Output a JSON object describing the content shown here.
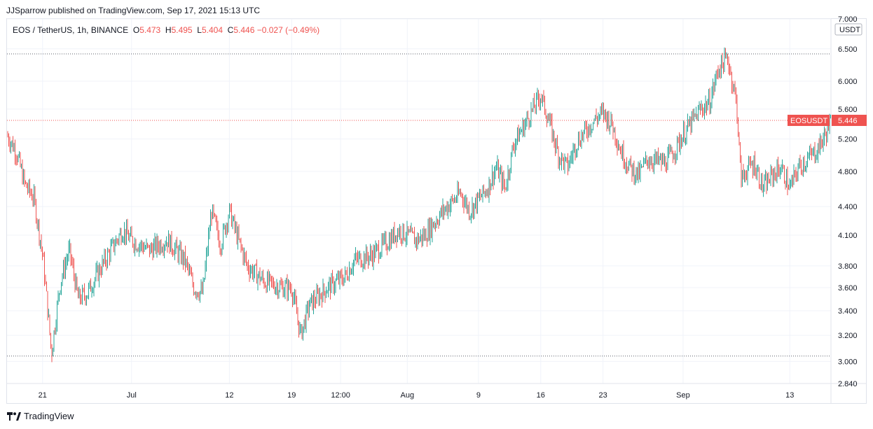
{
  "header": {
    "published": "JJSparrow published on TradingView.com, Sep 17, 2021 15:13 UTC"
  },
  "legend": {
    "symbol": "EOS / TetherUS, 1h, BINANCE",
    "o_label": "O",
    "o": "5.473",
    "h_label": "H",
    "h": "5.495",
    "l_label": "L",
    "l": "5.404",
    "c_label": "C",
    "c": "5.446",
    "change": "−0.027 (−0.49%)"
  },
  "footer": {
    "brand": "TradingView"
  },
  "colors": {
    "up": "#26a69a",
    "down": "#ef5350",
    "grid": "#f0f3fa",
    "level": "#5d606b",
    "price_line": "#ef5350"
  },
  "chart_data": {
    "type": "candlestick",
    "symbol": "EOSUSDT",
    "currency_label": "USDT",
    "last_price": 5.446,
    "y_axis": {
      "scale": "log",
      "range": [
        2.84,
        7.0
      ],
      "ticks": [
        "7.000",
        "6.500",
        "6.000",
        "5.600",
        "5.200",
        "4.800",
        "4.400",
        "4.100",
        "3.800",
        "3.600",
        "3.400",
        "3.200",
        "3.000",
        "2.840"
      ]
    },
    "x_axis": {
      "range": [
        "2021-06-17",
        "2021-09-17 15:00"
      ],
      "ticks": [
        {
          "date": "2021-06-21",
          "label": "21"
        },
        {
          "date": "2021-07-01",
          "label": "Jul"
        },
        {
          "date": "2021-07-12",
          "label": "12"
        },
        {
          "date": "2021-07-19",
          "label": "19"
        },
        {
          "date": "2021-07-24 12:00",
          "label": "12:00"
        },
        {
          "date": "2021-08-01",
          "label": "Aug"
        },
        {
          "date": "2021-08-09",
          "label": "9"
        },
        {
          "date": "2021-08-16",
          "label": "16"
        },
        {
          "date": "2021-08-23",
          "label": "23"
        },
        {
          "date": "2021-09-01",
          "label": "Sep"
        },
        {
          "date": "2021-09-13",
          "label": "13"
        }
      ]
    },
    "horizontal_levels": [
      6.42,
      3.04
    ],
    "price_path": [
      [
        "2021-06-17",
        5.25
      ],
      [
        "2021-06-18",
        5.05
      ],
      [
        "2021-06-19",
        4.65
      ],
      [
        "2021-06-20",
        4.5
      ],
      [
        "2021-06-21",
        3.9
      ],
      [
        "2021-06-22",
        3.05
      ],
      [
        "2021-06-23",
        3.65
      ],
      [
        "2021-06-24",
        3.95
      ],
      [
        "2021-06-25",
        3.5
      ],
      [
        "2021-06-26",
        3.55
      ],
      [
        "2021-06-28",
        3.85
      ],
      [
        "2021-06-30",
        4.15
      ],
      [
        "2021-07-01",
        4.05
      ],
      [
        "2021-07-03",
        3.95
      ],
      [
        "2021-07-05",
        4.05
      ],
      [
        "2021-07-07",
        3.85
      ],
      [
        "2021-07-08",
        3.6
      ],
      [
        "2021-07-09",
        3.55
      ],
      [
        "2021-07-10",
        4.35
      ],
      [
        "2021-07-11",
        4.0
      ],
      [
        "2021-07-12",
        4.35
      ],
      [
        "2021-07-13",
        4.05
      ],
      [
        "2021-07-14",
        3.8
      ],
      [
        "2021-07-16",
        3.65
      ],
      [
        "2021-07-18",
        3.6
      ],
      [
        "2021-07-19",
        3.6
      ],
      [
        "2021-07-20",
        3.2
      ],
      [
        "2021-07-21",
        3.45
      ],
      [
        "2021-07-23",
        3.6
      ],
      [
        "2021-07-25",
        3.7
      ],
      [
        "2021-07-26",
        3.85
      ],
      [
        "2021-07-28",
        3.9
      ],
      [
        "2021-07-30",
        4.05
      ],
      [
        "2021-07-31",
        4.15
      ],
      [
        "2021-08-02",
        4.05
      ],
      [
        "2021-08-03",
        4.1
      ],
      [
        "2021-08-05",
        4.35
      ],
      [
        "2021-08-07",
        4.55
      ],
      [
        "2021-08-08",
        4.35
      ],
      [
        "2021-08-10",
        4.6
      ],
      [
        "2021-08-11",
        4.85
      ],
      [
        "2021-08-12",
        4.6
      ],
      [
        "2021-08-13",
        5.15
      ],
      [
        "2021-08-14",
        5.35
      ],
      [
        "2021-08-16",
        5.8
      ],
      [
        "2021-08-17",
        5.4
      ],
      [
        "2021-08-18",
        5.0
      ],
      [
        "2021-08-19",
        4.85
      ],
      [
        "2021-08-20",
        5.15
      ],
      [
        "2021-08-21",
        5.3
      ],
      [
        "2021-08-22",
        5.45
      ],
      [
        "2021-08-23",
        5.55
      ],
      [
        "2021-08-24",
        5.4
      ],
      [
        "2021-08-25",
        5.05
      ],
      [
        "2021-08-26",
        4.85
      ],
      [
        "2021-08-27",
        4.75
      ],
      [
        "2021-08-28",
        4.95
      ],
      [
        "2021-08-30",
        4.9
      ],
      [
        "2021-08-31",
        5.05
      ],
      [
        "2021-09-01",
        5.25
      ],
      [
        "2021-09-03",
        5.6
      ],
      [
        "2021-09-04",
        5.7
      ],
      [
        "2021-09-05",
        6.2
      ],
      [
        "2021-09-06",
        6.35
      ],
      [
        "2021-09-07",
        5.7
      ],
      [
        "2021-09-07 12:00",
        4.7
      ],
      [
        "2021-09-08",
        4.8
      ],
      [
        "2021-09-09",
        4.9
      ],
      [
        "2021-09-10",
        4.6
      ],
      [
        "2021-09-11",
        4.75
      ],
      [
        "2021-09-12",
        4.85
      ],
      [
        "2021-09-13",
        4.6
      ],
      [
        "2021-09-14",
        4.85
      ],
      [
        "2021-09-15",
        4.95
      ],
      [
        "2021-09-16",
        5.05
      ],
      [
        "2021-09-17",
        5.25
      ],
      [
        "2021-09-17 15:00",
        5.446
      ]
    ]
  }
}
